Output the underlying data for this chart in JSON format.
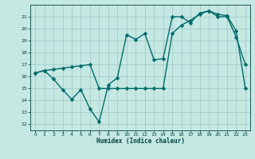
{
  "xlabel": "Humidex (Indice chaleur)",
  "bg_color": "#c5e8e3",
  "grid_color": "#9dc8c3",
  "line_color": "#006b6b",
  "xlim": [
    -0.5,
    23.5
  ],
  "ylim": [
    11.5,
    22
  ],
  "yticks": [
    12,
    13,
    14,
    15,
    16,
    17,
    18,
    19,
    20,
    21
  ],
  "xticks": [
    0,
    1,
    2,
    3,
    4,
    5,
    6,
    7,
    8,
    9,
    10,
    11,
    12,
    13,
    14,
    15,
    16,
    17,
    18,
    19,
    20,
    21,
    22,
    23
  ],
  "line1_x": [
    0,
    1,
    2,
    3,
    4,
    5,
    6,
    7,
    8,
    9,
    10,
    11,
    12,
    13,
    14,
    15,
    16,
    17,
    18,
    19,
    20,
    21,
    22,
    23
  ],
  "line1_y": [
    16.3,
    16.5,
    15.8,
    14.9,
    14.1,
    14.9,
    13.3,
    12.2,
    15.3,
    15.9,
    19.5,
    19.1,
    19.6,
    17.4,
    17.5,
    21.0,
    21.0,
    20.5,
    21.3,
    21.5,
    21.0,
    21.0,
    19.3,
    17.0
  ],
  "line2_x": [
    0,
    1,
    2,
    3,
    4,
    5,
    6,
    7,
    8,
    9,
    10,
    11,
    12,
    13,
    14,
    15,
    16,
    17,
    18,
    19,
    20,
    21,
    22,
    23
  ],
  "line2_y": [
    16.3,
    16.5,
    16.6,
    16.7,
    16.8,
    16.9,
    17.0,
    15.0,
    15.0,
    15.0,
    15.0,
    15.0,
    15.0,
    15.0,
    15.0,
    19.6,
    20.3,
    20.7,
    21.2,
    21.5,
    21.2,
    21.1,
    19.8,
    15.0
  ],
  "font_color": "#004040",
  "markersize": 2.5,
  "linewidth": 1.0
}
